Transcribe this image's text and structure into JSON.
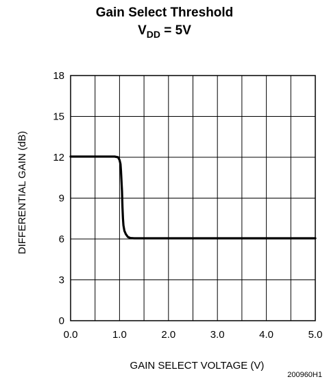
{
  "title": {
    "line1": "Gain Select Threshold",
    "line2_main": "V",
    "line2_sub": "DD",
    "line2_rest": " = 5V"
  },
  "figure_id": "200960H1",
  "chart_data": {
    "type": "line",
    "title": "Gain Select Threshold V_DD = 5V",
    "xlabel": "GAIN SELECT VOLTAGE (V)",
    "ylabel": "DIFFERENTIAL GAIN (dB)",
    "xlim": [
      0.0,
      5.0
    ],
    "ylim": [
      0,
      18
    ],
    "x_ticks": [
      0.0,
      1.0,
      2.0,
      3.0,
      4.0,
      5.0
    ],
    "x_tick_labels": [
      "0.0",
      "1.0",
      "2.0",
      "3.0",
      "4.0",
      "5.0"
    ],
    "y_ticks": [
      0,
      3,
      6,
      9,
      12,
      15,
      18
    ],
    "y_tick_labels": [
      "0",
      "3",
      "6",
      "9",
      "12",
      "15",
      "18"
    ],
    "x_grid_step": 0.5,
    "y_grid_step": 3,
    "grid": true,
    "legend": "none",
    "series": [
      {
        "color": "#000000",
        "x": [
          0.0,
          0.5,
          0.9,
          0.97,
          1.0,
          1.02,
          1.03,
          1.05,
          1.06,
          1.07,
          1.08,
          1.1,
          1.13,
          1.17,
          1.22,
          1.3,
          2.0,
          3.0,
          4.0,
          5.0
        ],
        "y": [
          12.05,
          12.05,
          12.05,
          12.0,
          11.8,
          11.5,
          11.0,
          9.5,
          8.3,
          7.5,
          7.0,
          6.6,
          6.35,
          6.15,
          6.07,
          6.05,
          6.05,
          6.05,
          6.05,
          6.05
        ]
      }
    ]
  }
}
